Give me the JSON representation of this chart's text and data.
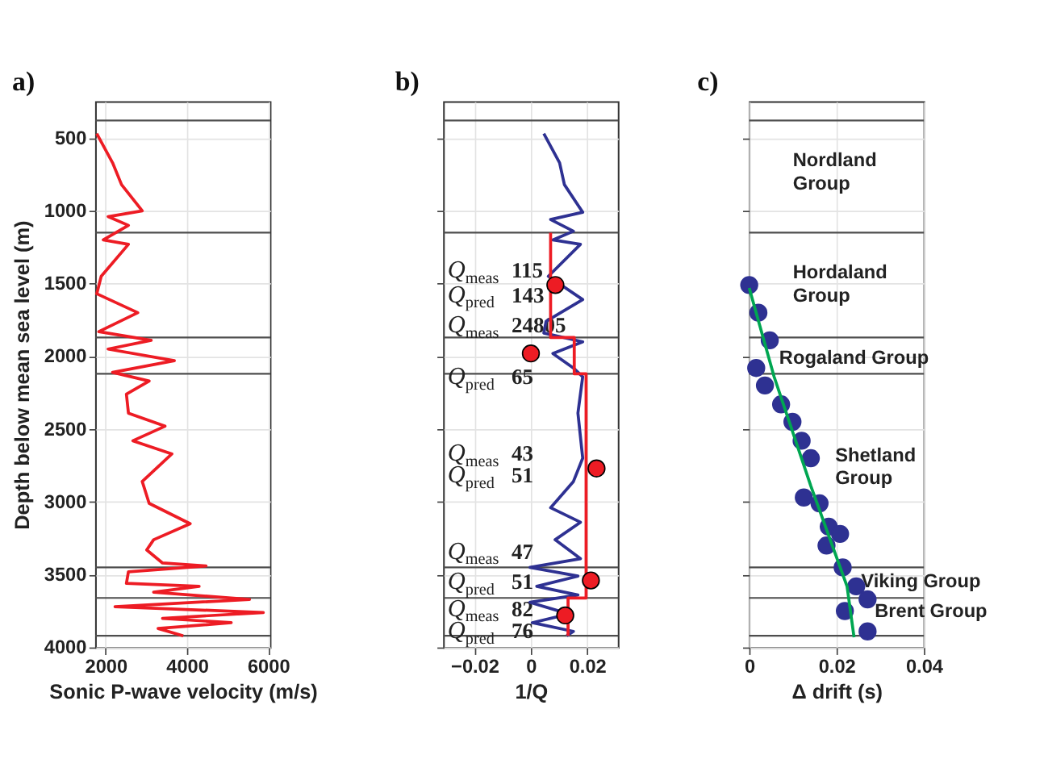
{
  "chart_data": [
    {
      "type": "line",
      "title": "a)",
      "xlabel": "Sonic P-wave velocity (m/s)",
      "ylabel": "Depth below mean sea level (m)",
      "xlim": [
        1750,
        6050
      ],
      "xticks": [
        2000,
        4000,
        6000
      ],
      "ylim": [
        4000,
        250
      ],
      "yticks": [
        500,
        1000,
        1500,
        2000,
        2500,
        3000,
        3500,
        4000
      ],
      "grid": true,
      "line_style": "solid",
      "series": [
        {
          "color": "#ed1c24",
          "x": [
            1780,
            2170,
            2390,
            2900,
            2060,
            2560,
            1940,
            2560,
            1890,
            1780,
            2790,
            1830,
            3120,
            2060,
            3690,
            2170,
            3070,
            2510,
            2560,
            3460,
            2670,
            3630,
            2900,
            3070,
            4080,
            3180,
            3010,
            3400,
            4470,
            2560,
            2510,
            4300,
            3180,
            5540,
            2230,
            5880,
            3400,
            5090,
            3290,
            3910
          ],
          "values": [
            470,
            670,
            820,
            1000,
            1040,
            1100,
            1200,
            1230,
            1450,
            1570,
            1700,
            1830,
            1890,
            1950,
            2030,
            2110,
            2170,
            2260,
            2390,
            2480,
            2580,
            2670,
            2860,
            3010,
            3150,
            3260,
            3330,
            3420,
            3440,
            3480,
            3560,
            3580,
            3620,
            3670,
            3720,
            3760,
            3800,
            3830,
            3870,
            3920
          ]
        }
      ],
      "ref_lines": [
        {
          "axis": "y",
          "value": 380,
          "color": "#4d4d4d"
        },
        {
          "axis": "y",
          "value": 1150,
          "color": "#4d4d4d"
        },
        {
          "axis": "y",
          "value": 1870,
          "color": "#4d4d4d"
        },
        {
          "axis": "y",
          "value": 2120,
          "color": "#4d4d4d"
        },
        {
          "axis": "y",
          "value": 3450,
          "color": "#4d4d4d"
        },
        {
          "axis": "y",
          "value": 3660,
          "color": "#4d4d4d"
        },
        {
          "axis": "y",
          "value": 3920,
          "color": "#4d4d4d"
        }
      ]
    },
    {
      "type": "line",
      "title": "b)",
      "xlabel": "1/Q",
      "xlim": [
        -0.031,
        0.031
      ],
      "xticks": [
        -0.02,
        0,
        0.02
      ],
      "ylim": [
        4000,
        250
      ],
      "yticks": [
        500,
        1000,
        1500,
        2000,
        2500,
        3000,
        3500,
        4000
      ],
      "grid": true,
      "tick_labels": "x",
      "line_style": "solid",
      "series": [
        {
          "color": "#2e3192",
          "x": [
            0.0046,
            0.0102,
            0.0119,
            0.0184,
            0.007,
            0.0151,
            0.0078,
            0.0176,
            0.0062,
            0.0184,
            0.0054,
            0.0046,
            0.0184,
            0.0078,
            0.0151,
            0.0184,
            0.0167,
            0.0184,
            0.0151,
            0.007,
            0.0176,
            0.0086,
            0.0176,
            -0.0003,
            0.0167,
            0.0021,
            0.0167,
            -0.0003,
            0.0135,
            0.0005,
            0.0151,
            0.0127
          ],
          "values": [
            470,
            670,
            820,
            1010,
            1060,
            1140,
            1200,
            1230,
            1450,
            1610,
            1760,
            1840,
            1900,
            1980,
            2080,
            2140,
            2390,
            2700,
            2860,
            3040,
            3140,
            3260,
            3390,
            3450,
            3510,
            3580,
            3640,
            3690,
            3770,
            3830,
            3890,
            3920
          ]
        },
        {
          "color": "#ed1c24",
          "x": [
            0.007,
            0.007,
            0.0154,
            0.0154,
            0.0196,
            0.0196,
            0.0132,
            0.0132
          ],
          "values": [
            1150,
            1870,
            1870,
            2120,
            2120,
            3660,
            3660,
            3920
          ]
        },
        {
          "type": "scatter",
          "marker": "circle",
          "color": "#ed1c24",
          "x": [
            0.0087,
            0.0,
            0.0233,
            0.0213,
            0.0122
          ],
          "values": [
            1510,
            1980,
            2770,
            3540,
            3780
          ]
        }
      ],
      "annotations": [
        "Q$_{meas}$ 115",
        "Q$_{pred}$ 143",
        "Q$_{meas}$ 24805",
        "Q$_{pred}$ 65",
        "Q$_{meas}$ 43",
        "Q$_{pred}$ 51",
        "Q$_{meas}$ 47",
        "Q$_{pred}$ 51",
        "Q$_{meas}$ 82",
        "Q$_{pred}$ 76"
      ],
      "ref_lines": [
        {
          "axis": "y",
          "value": 380,
          "color": "#4d4d4d"
        },
        {
          "axis": "y",
          "value": 1150,
          "color": "#4d4d4d"
        },
        {
          "axis": "y",
          "value": 1870,
          "color": "#4d4d4d"
        },
        {
          "axis": "y",
          "value": 2120,
          "color": "#4d4d4d"
        },
        {
          "axis": "y",
          "value": 3450,
          "color": "#4d4d4d"
        },
        {
          "axis": "y",
          "value": 3660,
          "color": "#4d4d4d"
        },
        {
          "axis": "y",
          "value": 3920,
          "color": "#4d4d4d"
        }
      ]
    },
    {
      "type": "scatter",
      "title": "c)",
      "xlabel": "Δ drift (s)",
      "xlim": [
        0,
        0.04
      ],
      "xticks": [
        0,
        0.02,
        0.04
      ],
      "ylim": [
        4000,
        250
      ],
      "yticks": [
        500,
        1000,
        1500,
        2000,
        2500,
        3000,
        3500,
        4000
      ],
      "grid": true,
      "tick_labels": "x",
      "series": [
        {
          "marker": "circle",
          "color": "#2e3192",
          "x": [
            0.0,
            0.0021,
            0.0047,
            0.0016,
            0.0036,
            0.0073,
            0.0099,
            0.012,
            0.0141,
            0.0125,
            0.0161,
            0.0182,
            0.0177,
            0.0208,
            0.0214,
            0.0245,
            0.0219,
            0.0271,
            0.0271
          ],
          "values": [
            1510,
            1700,
            1890,
            2080,
            2200,
            2330,
            2450,
            2580,
            2700,
            2970,
            3010,
            3170,
            3300,
            3220,
            3450,
            3580,
            3750,
            3670,
            3890
          ]
        },
        {
          "type": "line",
          "line_style": "solid",
          "color": "#00a651",
          "x": [
            0.0,
            0.0057,
            0.0141,
            0.0224,
            0.024
          ],
          "values": [
            1530,
            2140,
            2890,
            3580,
            3930
          ]
        }
      ],
      "annotations": [
        "Nordland\nGroup",
        "Hordaland\nGroup",
        "Rogaland Group",
        "Shetland\nGroup",
        "Viking Group",
        "Brent Group"
      ],
      "ref_lines": [
        {
          "axis": "y",
          "value": 380,
          "color": "#4d4d4d"
        },
        {
          "axis": "y",
          "value": 1150,
          "color": "#4d4d4d"
        },
        {
          "axis": "y",
          "value": 1870,
          "color": "#4d4d4d"
        },
        {
          "axis": "y",
          "value": 2120,
          "color": "#4d4d4d"
        },
        {
          "axis": "y",
          "value": 3450,
          "color": "#4d4d4d"
        },
        {
          "axis": "y",
          "value": 3660,
          "color": "#4d4d4d"
        },
        {
          "axis": "y",
          "value": 3920,
          "color": "#4d4d4d"
        }
      ]
    }
  ]
}
